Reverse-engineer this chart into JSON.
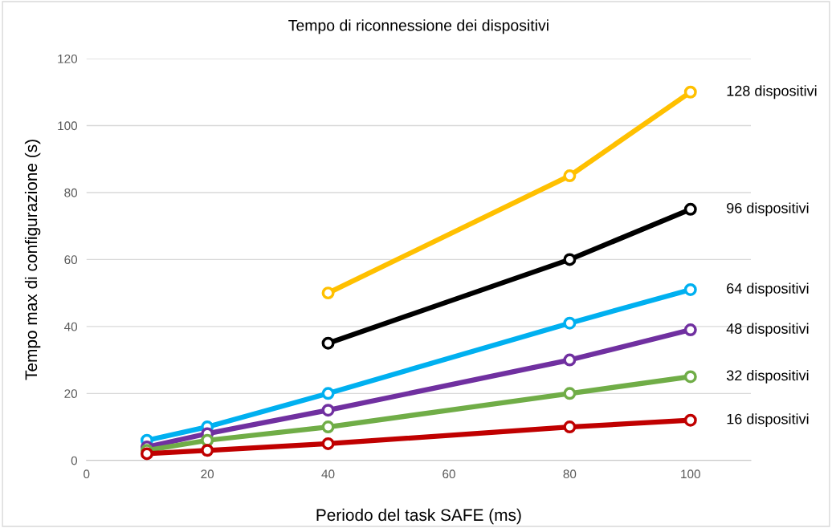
{
  "chart_data": {
    "type": "line",
    "title": "Tempo di riconnessione dei dispositivi",
    "xlabel": "Periodo del task SAFE (ms)",
    "ylabel": "Tempo max di configurazione (s)",
    "xlim": [
      0,
      110
    ],
    "xticks": [
      0,
      20,
      40,
      60,
      80,
      100
    ],
    "ylim": [
      0,
      120
    ],
    "yticks": [
      0,
      20,
      40,
      60,
      80,
      100,
      120
    ],
    "grid": "y",
    "marker": "circle",
    "line_style": "solid",
    "legend": false,
    "series": [
      {
        "name": "128 dispositivi",
        "color": "#ffc000",
        "x": [
          40,
          80,
          100
        ],
        "values": [
          50,
          85,
          110
        ]
      },
      {
        "name": "96 dispositivi",
        "color": "#000000",
        "x": [
          40,
          80,
          100
        ],
        "values": [
          35,
          60,
          75
        ]
      },
      {
        "name": "64 dispositivi",
        "color": "#00b0f0",
        "x": [
          10,
          20,
          40,
          80,
          100
        ],
        "values": [
          6,
          10,
          20,
          41,
          51
        ]
      },
      {
        "name": "48 dispositivi",
        "color": "#7030a0",
        "x": [
          10,
          20,
          40,
          80,
          100
        ],
        "values": [
          4,
          8,
          15,
          30,
          39
        ]
      },
      {
        "name": "32 dispositivi",
        "color": "#70ad47",
        "x": [
          10,
          20,
          40,
          80,
          100
        ],
        "values": [
          3,
          6,
          10,
          20,
          25
        ]
      },
      {
        "name": "16 dispositivi",
        "color": "#c00000",
        "x": [
          10,
          20,
          40,
          80,
          100
        ],
        "values": [
          2,
          3,
          5,
          10,
          12
        ]
      }
    ]
  }
}
